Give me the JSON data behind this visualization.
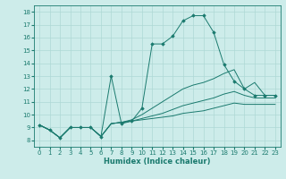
{
  "xlabel": "Humidex (Indice chaleur)",
  "background_color": "#cdecea",
  "line_color": "#1a7a6e",
  "grid_color": "#aed8d5",
  "xlim": [
    -0.5,
    23.5
  ],
  "ylim": [
    7.5,
    18.5
  ],
  "xticks": [
    0,
    1,
    2,
    3,
    4,
    5,
    6,
    7,
    8,
    9,
    10,
    11,
    12,
    13,
    14,
    15,
    16,
    17,
    18,
    19,
    20,
    21,
    22,
    23
  ],
  "yticks": [
    8,
    9,
    10,
    11,
    12,
    13,
    14,
    15,
    16,
    17,
    18
  ],
  "series": [
    {
      "x": [
        0,
        1,
        2,
        3,
        4,
        5,
        6,
        7,
        8,
        9,
        10,
        11,
        12,
        13,
        14,
        15,
        16,
        17,
        18,
        19,
        20,
        21,
        22,
        23
      ],
      "y": [
        9.2,
        8.8,
        8.2,
        9.0,
        9.0,
        9.0,
        8.3,
        13.0,
        9.3,
        9.5,
        10.5,
        15.5,
        15.5,
        16.1,
        17.3,
        17.7,
        17.7,
        16.4,
        13.9,
        12.6,
        12.0,
        11.5,
        11.5,
        11.5
      ],
      "marker": true
    },
    {
      "x": [
        0,
        1,
        2,
        3,
        4,
        5,
        6,
        7,
        8,
        9,
        10,
        11,
        12,
        13,
        14,
        15,
        16,
        17,
        18,
        19,
        20,
        21,
        22,
        23
      ],
      "y": [
        9.2,
        8.8,
        8.2,
        9.0,
        9.0,
        9.0,
        8.3,
        9.3,
        9.4,
        9.6,
        10.0,
        10.5,
        11.0,
        11.5,
        12.0,
        12.3,
        12.5,
        12.8,
        13.2,
        13.5,
        12.0,
        12.5,
        11.5,
        11.5
      ],
      "marker": false
    },
    {
      "x": [
        0,
        1,
        2,
        3,
        4,
        5,
        6,
        7,
        8,
        9,
        10,
        11,
        12,
        13,
        14,
        15,
        16,
        17,
        18,
        19,
        20,
        21,
        22,
        23
      ],
      "y": [
        9.2,
        8.8,
        8.2,
        9.0,
        9.0,
        9.0,
        8.3,
        9.3,
        9.4,
        9.5,
        9.7,
        9.9,
        10.1,
        10.4,
        10.7,
        10.9,
        11.1,
        11.3,
        11.6,
        11.8,
        11.5,
        11.3,
        11.3,
        11.3
      ],
      "marker": false
    },
    {
      "x": [
        0,
        1,
        2,
        3,
        4,
        5,
        6,
        7,
        8,
        9,
        10,
        11,
        12,
        13,
        14,
        15,
        16,
        17,
        18,
        19,
        20,
        21,
        22,
        23
      ],
      "y": [
        9.2,
        8.8,
        8.2,
        9.0,
        9.0,
        9.0,
        8.3,
        9.3,
        9.4,
        9.5,
        9.6,
        9.7,
        9.8,
        9.9,
        10.1,
        10.2,
        10.3,
        10.5,
        10.7,
        10.9,
        10.8,
        10.8,
        10.8,
        10.8
      ],
      "marker": false
    }
  ]
}
